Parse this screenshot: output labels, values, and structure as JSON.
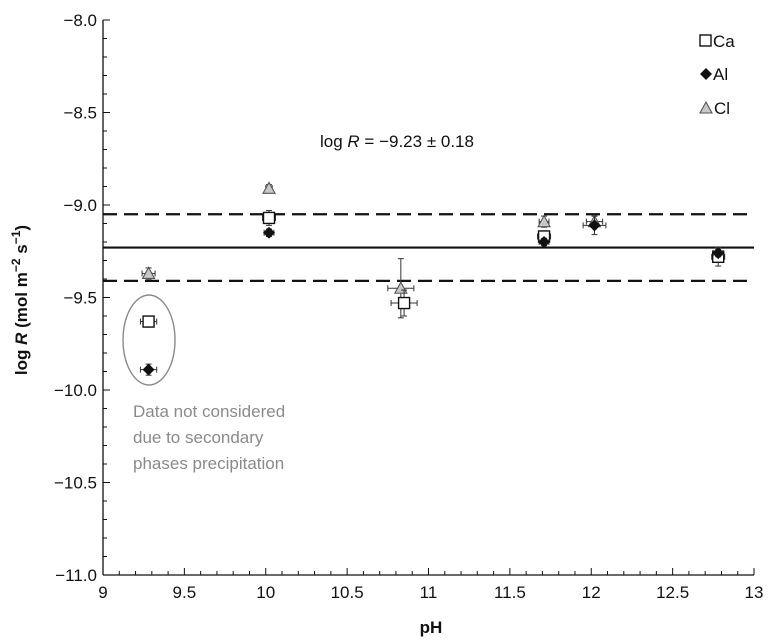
{
  "chart_data": {
    "type": "scatter",
    "xlabel": "pH",
    "ylabel_parts": {
      "prefix": "log ",
      "var": "R",
      "units": " (mol m",
      "exp1": "−2",
      "mid": " s",
      "exp2": "−1",
      "suffix": ")"
    },
    "xlim": [
      9,
      13
    ],
    "ylim": [
      -11.0,
      -8.0
    ],
    "x_ticks": [
      9,
      9.5,
      10,
      10.5,
      11,
      11.5,
      12,
      12.5,
      13
    ],
    "x_tick_labels": [
      "9",
      "9.5",
      "10",
      "10.5",
      "11",
      "11.5",
      "12",
      "12.5",
      "13"
    ],
    "y_ticks": [
      -11.0,
      -10.5,
      -10.0,
      -9.5,
      -9.0,
      -8.5,
      -8.0
    ],
    "y_tick_labels": [
      "−11.0",
      "−10.5",
      "−10.0",
      "−9.5",
      "−9.0",
      "−8.5",
      "−8.0"
    ],
    "grid": false,
    "legend_position": "top-right",
    "series": [
      {
        "name": "Ca",
        "marker": "square-open",
        "color": "#111111",
        "points": [
          {
            "x": 9.28,
            "y": -9.63,
            "xerr": 0.05,
            "yerr": 0.03
          },
          {
            "x": 10.02,
            "y": -9.07,
            "xerr": 0.04,
            "yerr": 0.04
          },
          {
            "x": 10.85,
            "y": -9.53,
            "xerr": 0.08,
            "yerr": 0.07
          },
          {
            "x": 11.71,
            "y": -9.17,
            "xerr": 0.04,
            "yerr": 0.03
          },
          {
            "x": 12.78,
            "y": -9.28,
            "xerr": 0.04,
            "yerr": 0.05
          }
        ]
      },
      {
        "name": "Al",
        "marker": "diamond-filled",
        "color": "#111111",
        "points": [
          {
            "x": 9.28,
            "y": -9.89,
            "xerr": 0.05,
            "yerr": 0.03
          },
          {
            "x": 10.02,
            "y": -9.15,
            "xerr": 0.03,
            "yerr": 0.02
          },
          {
            "x": 11.71,
            "y": -9.2,
            "xerr": 0.03,
            "yerr": 0.02
          },
          {
            "x": 12.02,
            "y": -9.11,
            "xerr": 0.07,
            "yerr": 0.05
          },
          {
            "x": 12.78,
            "y": -9.26,
            "xerr": 0.03,
            "yerr": 0.02
          }
        ]
      },
      {
        "name": "Cl",
        "marker": "triangle-gray",
        "color": "#9a9a9a",
        "points": [
          {
            "x": 9.28,
            "y": -9.37,
            "xerr": 0.04,
            "yerr": 0.03
          },
          {
            "x": 10.02,
            "y": -8.91,
            "xerr": 0.02,
            "yerr": 0.02
          },
          {
            "x": 10.83,
            "y": -9.45,
            "xerr": 0.08,
            "yerr": 0.16
          },
          {
            "x": 11.71,
            "y": -9.09,
            "xerr": 0.03,
            "yerr": 0.03
          },
          {
            "x": 12.02,
            "y": -9.09,
            "xerr": 0.05,
            "yerr": 0.03
          }
        ]
      }
    ],
    "reference_lines": [
      {
        "y": -9.23,
        "style": "solid"
      },
      {
        "y": -9.05,
        "style": "dashed"
      },
      {
        "y": -9.41,
        "style": "dashed"
      }
    ],
    "formula": {
      "prefix": "log ",
      "var": "R",
      "rest": " = −9.23 ± 0.18"
    },
    "annotation_lines": [
      "Data not considered",
      "due to secondary",
      "phases precipitation"
    ],
    "legend": [
      {
        "label": "Ca",
        "marker": "square-open"
      },
      {
        "label": "Al",
        "marker": "diamond-filled"
      },
      {
        "label": "Cl",
        "marker": "triangle-gray"
      }
    ]
  }
}
